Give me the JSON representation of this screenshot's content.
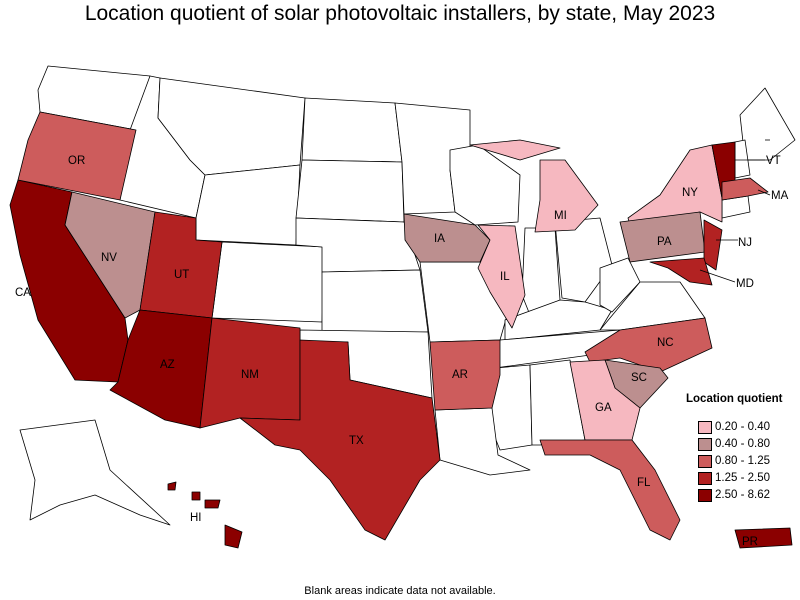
{
  "title": "Location quotient of solar photovoltaic installers, by state, May 2023",
  "footnote": "Blank areas indicate data not available.",
  "legend": {
    "title": "Location quotient",
    "items": [
      {
        "label": "0.20 - 0.40",
        "color": "#f6b8c0"
      },
      {
        "label": "0.40 - 0.80",
        "color": "#bc8f8f"
      },
      {
        "label": "0.80 - 1.25",
        "color": "#cd5c5c"
      },
      {
        "label": "1.25 - 2.50",
        "color": "#b22222"
      },
      {
        "label": "2.50 - 8.62",
        "color": "#8b0000"
      }
    ]
  },
  "states": [
    {
      "abbr": "CA",
      "bin": "2.50 - 8.62"
    },
    {
      "abbr": "AZ",
      "bin": "2.50 - 8.62"
    },
    {
      "abbr": "VT",
      "bin": "2.50 - 8.62"
    },
    {
      "abbr": "HI",
      "bin": "2.50 - 8.62"
    },
    {
      "abbr": "PR",
      "bin": "2.50 - 8.62"
    },
    {
      "abbr": "UT",
      "bin": "1.25 - 2.50"
    },
    {
      "abbr": "NM",
      "bin": "1.25 - 2.50"
    },
    {
      "abbr": "TX",
      "bin": "1.25 - 2.50"
    },
    {
      "abbr": "NJ",
      "bin": "1.25 - 2.50"
    },
    {
      "abbr": "MD",
      "bin": "1.25 - 2.50"
    },
    {
      "abbr": "OR",
      "bin": "0.80 - 1.25"
    },
    {
      "abbr": "AR",
      "bin": "0.80 - 1.25"
    },
    {
      "abbr": "NC",
      "bin": "0.80 - 1.25"
    },
    {
      "abbr": "FL",
      "bin": "0.80 - 1.25"
    },
    {
      "abbr": "MA",
      "bin": "0.80 - 1.25"
    },
    {
      "abbr": "NV",
      "bin": "0.40 - 0.80"
    },
    {
      "abbr": "IA",
      "bin": "0.40 - 0.80"
    },
    {
      "abbr": "PA",
      "bin": "0.40 - 0.80"
    },
    {
      "abbr": "SC",
      "bin": "0.40 - 0.80"
    },
    {
      "abbr": "MI",
      "bin": "0.20 - 0.40"
    },
    {
      "abbr": "IL",
      "bin": "0.20 - 0.40"
    },
    {
      "abbr": "NY",
      "bin": "0.20 - 0.40"
    },
    {
      "abbr": "GA",
      "bin": "0.20 - 0.40"
    }
  ]
}
